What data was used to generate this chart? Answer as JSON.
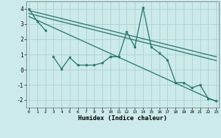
{
  "xlabel": "Humidex (Indice chaleur)",
  "series1_x": [
    0,
    1,
    2
  ],
  "series1_y": [
    4.0,
    3.2,
    2.6
  ],
  "series2_x": [
    3,
    4,
    5,
    6,
    7,
    8,
    9,
    10,
    11
  ],
  "series2_y": [
    0.85,
    0.05,
    0.8,
    0.3,
    0.3,
    0.3,
    0.45,
    0.85,
    0.85
  ],
  "series3_x": [
    10,
    11,
    12,
    13,
    14,
    15,
    16,
    17,
    18,
    19,
    20,
    21,
    22,
    23
  ],
  "series3_y": [
    0.85,
    0.85,
    2.5,
    1.5,
    4.1,
    1.5,
    1.1,
    0.65,
    -0.85,
    -0.85,
    -1.2,
    -1.0,
    -1.9,
    -2.05
  ],
  "trend1_x": [
    0,
    23
  ],
  "trend1_y": [
    3.9,
    0.85
  ],
  "trend2_x": [
    0,
    23
  ],
  "trend2_y": [
    3.7,
    0.6
  ],
  "trend3_x": [
    0,
    23
  ],
  "trend3_y": [
    3.5,
    -2.1
  ],
  "line_color": "#2a7a6e",
  "bg_color": "#cceaea",
  "grid_color": "#aacfcf",
  "xlim": [
    -0.3,
    23.3
  ],
  "ylim": [
    -2.5,
    4.5
  ],
  "yticks": [
    -2,
    -1,
    0,
    1,
    2,
    3,
    4
  ],
  "xticks": [
    0,
    1,
    2,
    3,
    4,
    5,
    6,
    7,
    8,
    9,
    10,
    11,
    12,
    13,
    14,
    15,
    16,
    17,
    18,
    19,
    20,
    21,
    22,
    23
  ]
}
